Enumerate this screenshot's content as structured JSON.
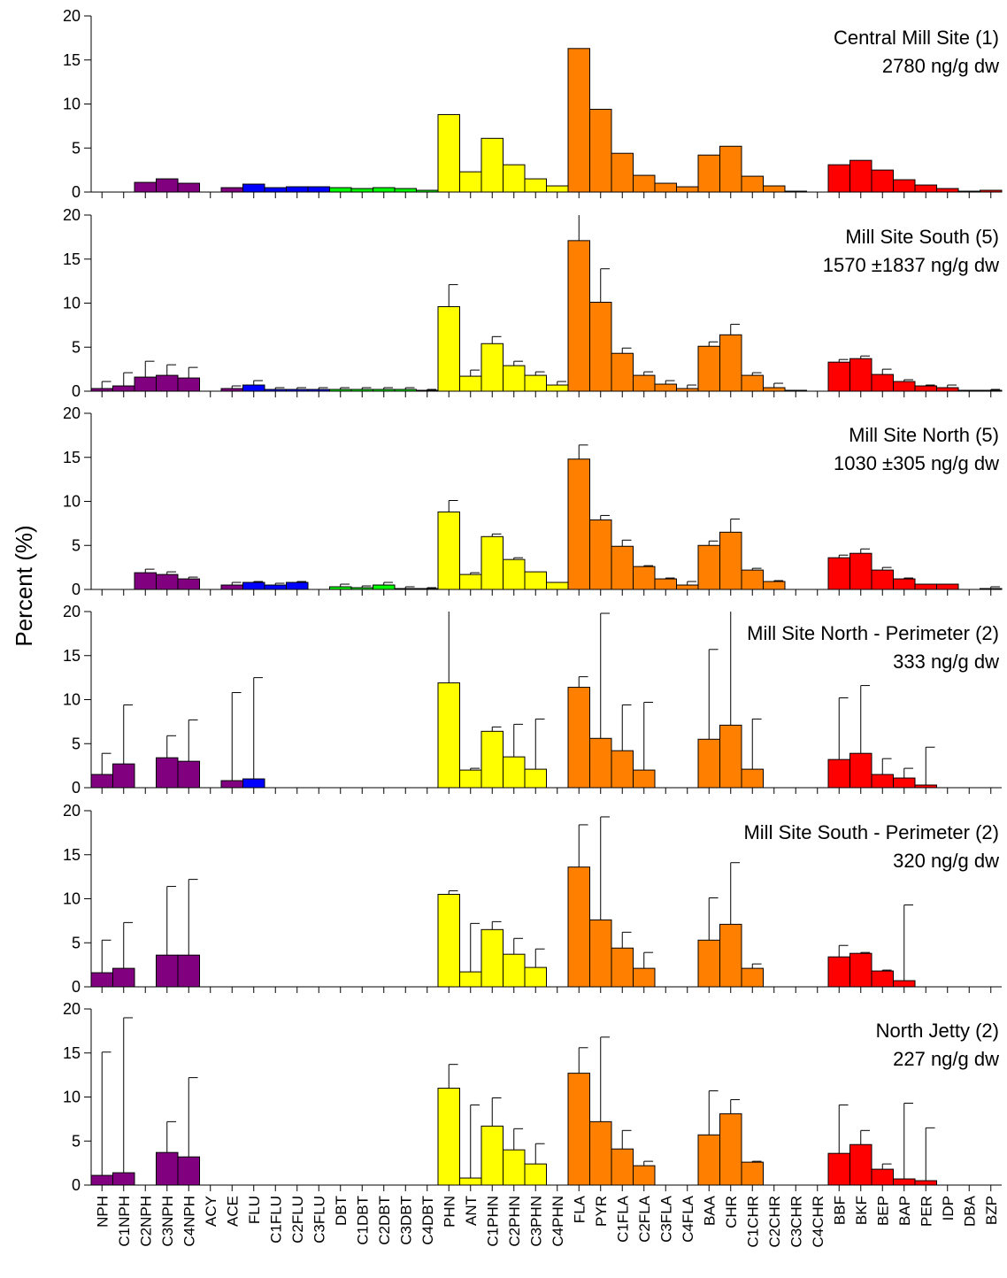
{
  "chart_data": {
    "type": "bar",
    "ylabel": "Percent (%)",
    "ylim": [
      0,
      20
    ],
    "yticks": [
      0,
      5,
      10,
      15,
      20
    ],
    "categories": [
      "NPH",
      "C1NPH",
      "C2NPH",
      "C3NPH",
      "C4NPH",
      "ACY",
      "ACE",
      "FLU",
      "C1FLU",
      "C2FLU",
      "C3FLU",
      "DBT",
      "C1DBT",
      "C2DBT",
      "C3DBT",
      "C4DBT",
      "PHN",
      "ANT",
      "C1PHN",
      "C2PHN",
      "C3PHN",
      "C4PHN",
      "FLA",
      "PYR",
      "C1FLA",
      "C2FLA",
      "C3FLA",
      "C4FLA",
      "BAA",
      "CHR",
      "C1CHR",
      "C2CHR",
      "C3CHR",
      "C4CHR",
      "BBF",
      "BKF",
      "BEP",
      "BAP",
      "PER",
      "IDP",
      "DBA",
      "BZP"
    ],
    "category_colors": [
      "#800080",
      "#800080",
      "#800080",
      "#800080",
      "#800080",
      "#800080",
      "#800080",
      "#0000ff",
      "#0000ff",
      "#0000ff",
      "#0000ff",
      "#00ff00",
      "#00ff00",
      "#00ff00",
      "#00ff00",
      "#00ff00",
      "#ffff00",
      "#ffff00",
      "#ffff00",
      "#ffff00",
      "#ffff00",
      "#ffff00",
      "#ff8000",
      "#ff8000",
      "#ff8000",
      "#ff8000",
      "#ff8000",
      "#ff8000",
      "#ff8000",
      "#ff8000",
      "#ff8000",
      "#ff8000",
      "#ff8000",
      "#ff8000",
      "#ff0000",
      "#ff0000",
      "#ff0000",
      "#ff0000",
      "#ff0000",
      "#ff0000",
      "#ff0000",
      "#ff0000"
    ],
    "panels": [
      {
        "title_line1": "Central Mill Site (1)",
        "title_line2": "2780 ng/g dw",
        "values": [
          0,
          0,
          1.1,
          1.5,
          1.0,
          0,
          0.5,
          0.9,
          0.5,
          0.6,
          0.6,
          0.5,
          0.4,
          0.5,
          0.4,
          0.2,
          8.8,
          2.3,
          6.1,
          3.1,
          1.5,
          0.7,
          16.3,
          9.4,
          4.4,
          1.9,
          1.0,
          0.6,
          4.2,
          5.2,
          1.8,
          0.7,
          0.1,
          0,
          3.1,
          3.6,
          2.5,
          1.4,
          0.8,
          0.4,
          0.1,
          0.2
        ],
        "errors": [
          0,
          0,
          0,
          0,
          0,
          0,
          0,
          0,
          0,
          0,
          0,
          0,
          0,
          0,
          0,
          0,
          0,
          0,
          0,
          0,
          0,
          0,
          0,
          0,
          0,
          0,
          0,
          0,
          0,
          0,
          0,
          0,
          0,
          0,
          0,
          0,
          0,
          0,
          0,
          0,
          0,
          0
        ]
      },
      {
        "title_line1": "Mill Site South (5)",
        "title_line2": "1570 ±1837 ng/g dw",
        "values": [
          0.3,
          0.6,
          1.6,
          1.8,
          1.5,
          0,
          0.3,
          0.7,
          0.2,
          0.2,
          0.2,
          0.2,
          0.2,
          0.2,
          0.2,
          0.1,
          9.6,
          1.7,
          5.4,
          2.9,
          1.8,
          0.7,
          17.1,
          10.1,
          4.3,
          1.8,
          0.8,
          0.3,
          5.1,
          6.4,
          1.8,
          0.4,
          0.1,
          0,
          3.3,
          3.7,
          1.9,
          1.1,
          0.6,
          0.4,
          0.1,
          0.1
        ],
        "errors": [
          0.8,
          1.5,
          1.8,
          1.2,
          1.2,
          0,
          0.3,
          0.5,
          0.2,
          0.2,
          0.2,
          0.2,
          0.2,
          0.2,
          0.2,
          0.1,
          2.5,
          0.7,
          0.8,
          0.5,
          0.4,
          0.4,
          3.3,
          3.8,
          0.6,
          0.4,
          0.4,
          0.4,
          0.5,
          1.2,
          0.3,
          0.5,
          0,
          0,
          0.3,
          0.3,
          0.6,
          0.2,
          0.1,
          0.3,
          0,
          0.1
        ]
      },
      {
        "title_line1": "Mill Site North (5)",
        "title_line2": "1030 ±305 ng/g dw",
        "values": [
          0,
          0,
          1.9,
          1.7,
          1.2,
          0,
          0.5,
          0.8,
          0.5,
          0.8,
          0,
          0.3,
          0.2,
          0.5,
          0.1,
          0.1,
          8.8,
          1.7,
          6.0,
          3.4,
          2.0,
          0.8,
          14.8,
          7.9,
          4.9,
          2.6,
          1.2,
          0.5,
          5.0,
          6.5,
          2.2,
          0.9,
          0,
          0,
          3.6,
          4.1,
          2.2,
          1.2,
          0.6,
          0.6,
          0,
          0.1
        ],
        "errors": [
          0,
          0,
          0.4,
          0.3,
          0.2,
          0,
          0.3,
          0.1,
          0.2,
          0.1,
          0,
          0.3,
          0.2,
          0.3,
          0.2,
          0.1,
          1.3,
          0.2,
          0.3,
          0.2,
          0,
          0,
          1.6,
          0.5,
          0.7,
          0.1,
          0.1,
          0.4,
          0.5,
          1.5,
          0.2,
          0.1,
          0,
          0,
          0.3,
          0.5,
          0.3,
          0.1,
          0,
          0,
          0,
          0.2
        ]
      },
      {
        "title_line1": "Mill Site North - Perimeter (2)",
        "title_line2": "333 ng/g dw",
        "values": [
          1.5,
          2.7,
          0,
          3.4,
          3.0,
          0,
          0.8,
          1.0,
          0,
          0,
          0,
          0,
          0,
          0,
          0,
          0,
          11.9,
          2.0,
          6.4,
          3.5,
          2.1,
          0,
          11.4,
          5.6,
          4.2,
          2.0,
          0,
          0,
          5.5,
          7.1,
          2.1,
          0,
          0,
          0,
          3.2,
          3.9,
          1.5,
          1.1,
          0.3,
          0,
          0,
          0
        ],
        "errors": [
          2.4,
          6.7,
          0,
          2.5,
          4.7,
          0,
          10.0,
          11.5,
          0,
          0,
          0,
          0,
          0,
          0,
          0,
          0,
          10.0,
          0.2,
          0.5,
          3.7,
          5.7,
          0,
          1.2,
          14.2,
          5.2,
          7.7,
          0,
          0,
          10.2,
          14.0,
          5.7,
          0,
          0,
          0,
          7.0,
          7.7,
          1.8,
          1.1,
          4.3,
          0,
          0,
          0
        ]
      },
      {
        "title_line1": "Mill Site South - Perimeter (2)",
        "title_line2": "320 ng/g dw",
        "values": [
          1.6,
          2.1,
          0,
          3.6,
          3.6,
          0,
          0,
          0,
          0,
          0,
          0,
          0,
          0,
          0,
          0,
          0,
          10.5,
          1.7,
          6.5,
          3.7,
          2.2,
          0,
          13.6,
          7.6,
          4.4,
          2.1,
          0,
          0,
          5.3,
          7.1,
          2.1,
          0,
          0,
          0,
          3.4,
          3.8,
          1.8,
          0.7,
          0,
          0,
          0,
          0
        ],
        "errors": [
          3.7,
          5.2,
          0,
          7.8,
          8.6,
          0,
          0,
          0,
          0,
          0,
          0,
          0,
          0,
          0,
          0,
          0,
          0.4,
          5.5,
          0.9,
          1.8,
          2.1,
          0,
          4.8,
          11.7,
          1.8,
          1.8,
          0,
          0,
          4.8,
          7.0,
          0.5,
          0,
          0,
          0,
          1.3,
          0.1,
          0.1,
          8.6,
          0,
          0,
          0,
          0
        ]
      },
      {
        "title_line1": "North Jetty (2)",
        "title_line2": "227 ng/g dw",
        "values": [
          1.1,
          1.4,
          0,
          3.7,
          3.2,
          0,
          0,
          0,
          0,
          0,
          0,
          0,
          0,
          0,
          0,
          0,
          11.0,
          0.8,
          6.7,
          4.0,
          2.4,
          0,
          12.7,
          7.2,
          4.1,
          2.2,
          0,
          0,
          5.7,
          8.1,
          2.6,
          0,
          0,
          0,
          3.6,
          4.6,
          1.8,
          0.7,
          0.5,
          0,
          0,
          0
        ],
        "errors": [
          14.0,
          17.6,
          0,
          3.5,
          9.0,
          0,
          0,
          0,
          0,
          0,
          0,
          0,
          0,
          0,
          0,
          0,
          2.7,
          8.3,
          3.2,
          2.4,
          2.3,
          0,
          2.9,
          9.6,
          2.1,
          0.5,
          0,
          0,
          5.0,
          1.6,
          0.1,
          0,
          0,
          0,
          5.5,
          1.6,
          0.6,
          8.6,
          6.0,
          0,
          0,
          0
        ]
      }
    ]
  }
}
